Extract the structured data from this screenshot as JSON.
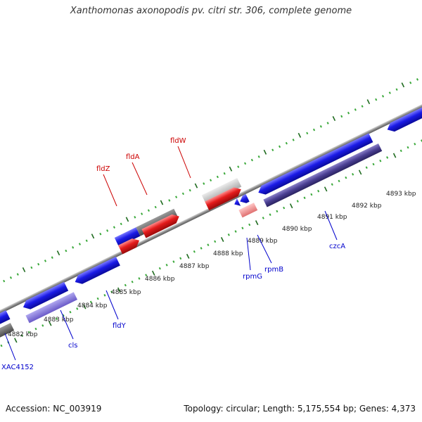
{
  "title": "Xanthomonas axonopodis pv. citri str. 306, complete genome",
  "footer": {
    "accession": "Accession: NC_003919",
    "summary": "Topology: circular; Length: 5,175,554 bp; Genes: 4,373"
  },
  "colors": {
    "background": "#ffffff",
    "backbone": "#9a9a9a",
    "tick_dark": "#1f6b1f",
    "tick_light": "#3aa83a",
    "forward_gene": "#e41b1b",
    "forward_gene_light": "#f09090",
    "forward_gray": "#c0c0c0",
    "reverse_gene": "#1a1ae6",
    "reverse_operon": "#4a3f92",
    "reverse_light": "#8070d8",
    "reverse_gray": "#6a6a6a",
    "label_forward": "#cc0000",
    "label_reverse": "#0000cc",
    "scale_text": "#222222"
  },
  "scale_labels": [
    "4882 kbp",
    "4883 kbp",
    "4884 kbp",
    "4885 kbp",
    "4886 kbp",
    "4887 kbp",
    "4888 kbp",
    "4889 kbp",
    "4890 kbp",
    "4891 kbp",
    "4892 kbp",
    "4893 kbp"
  ],
  "gene_labels": {
    "forward": [
      "fldZ",
      "fldA",
      "fldW"
    ],
    "reverse": [
      "XAC4152",
      "cls",
      "fldY",
      "rpmG",
      "rpmB",
      "czcA"
    ]
  }
}
